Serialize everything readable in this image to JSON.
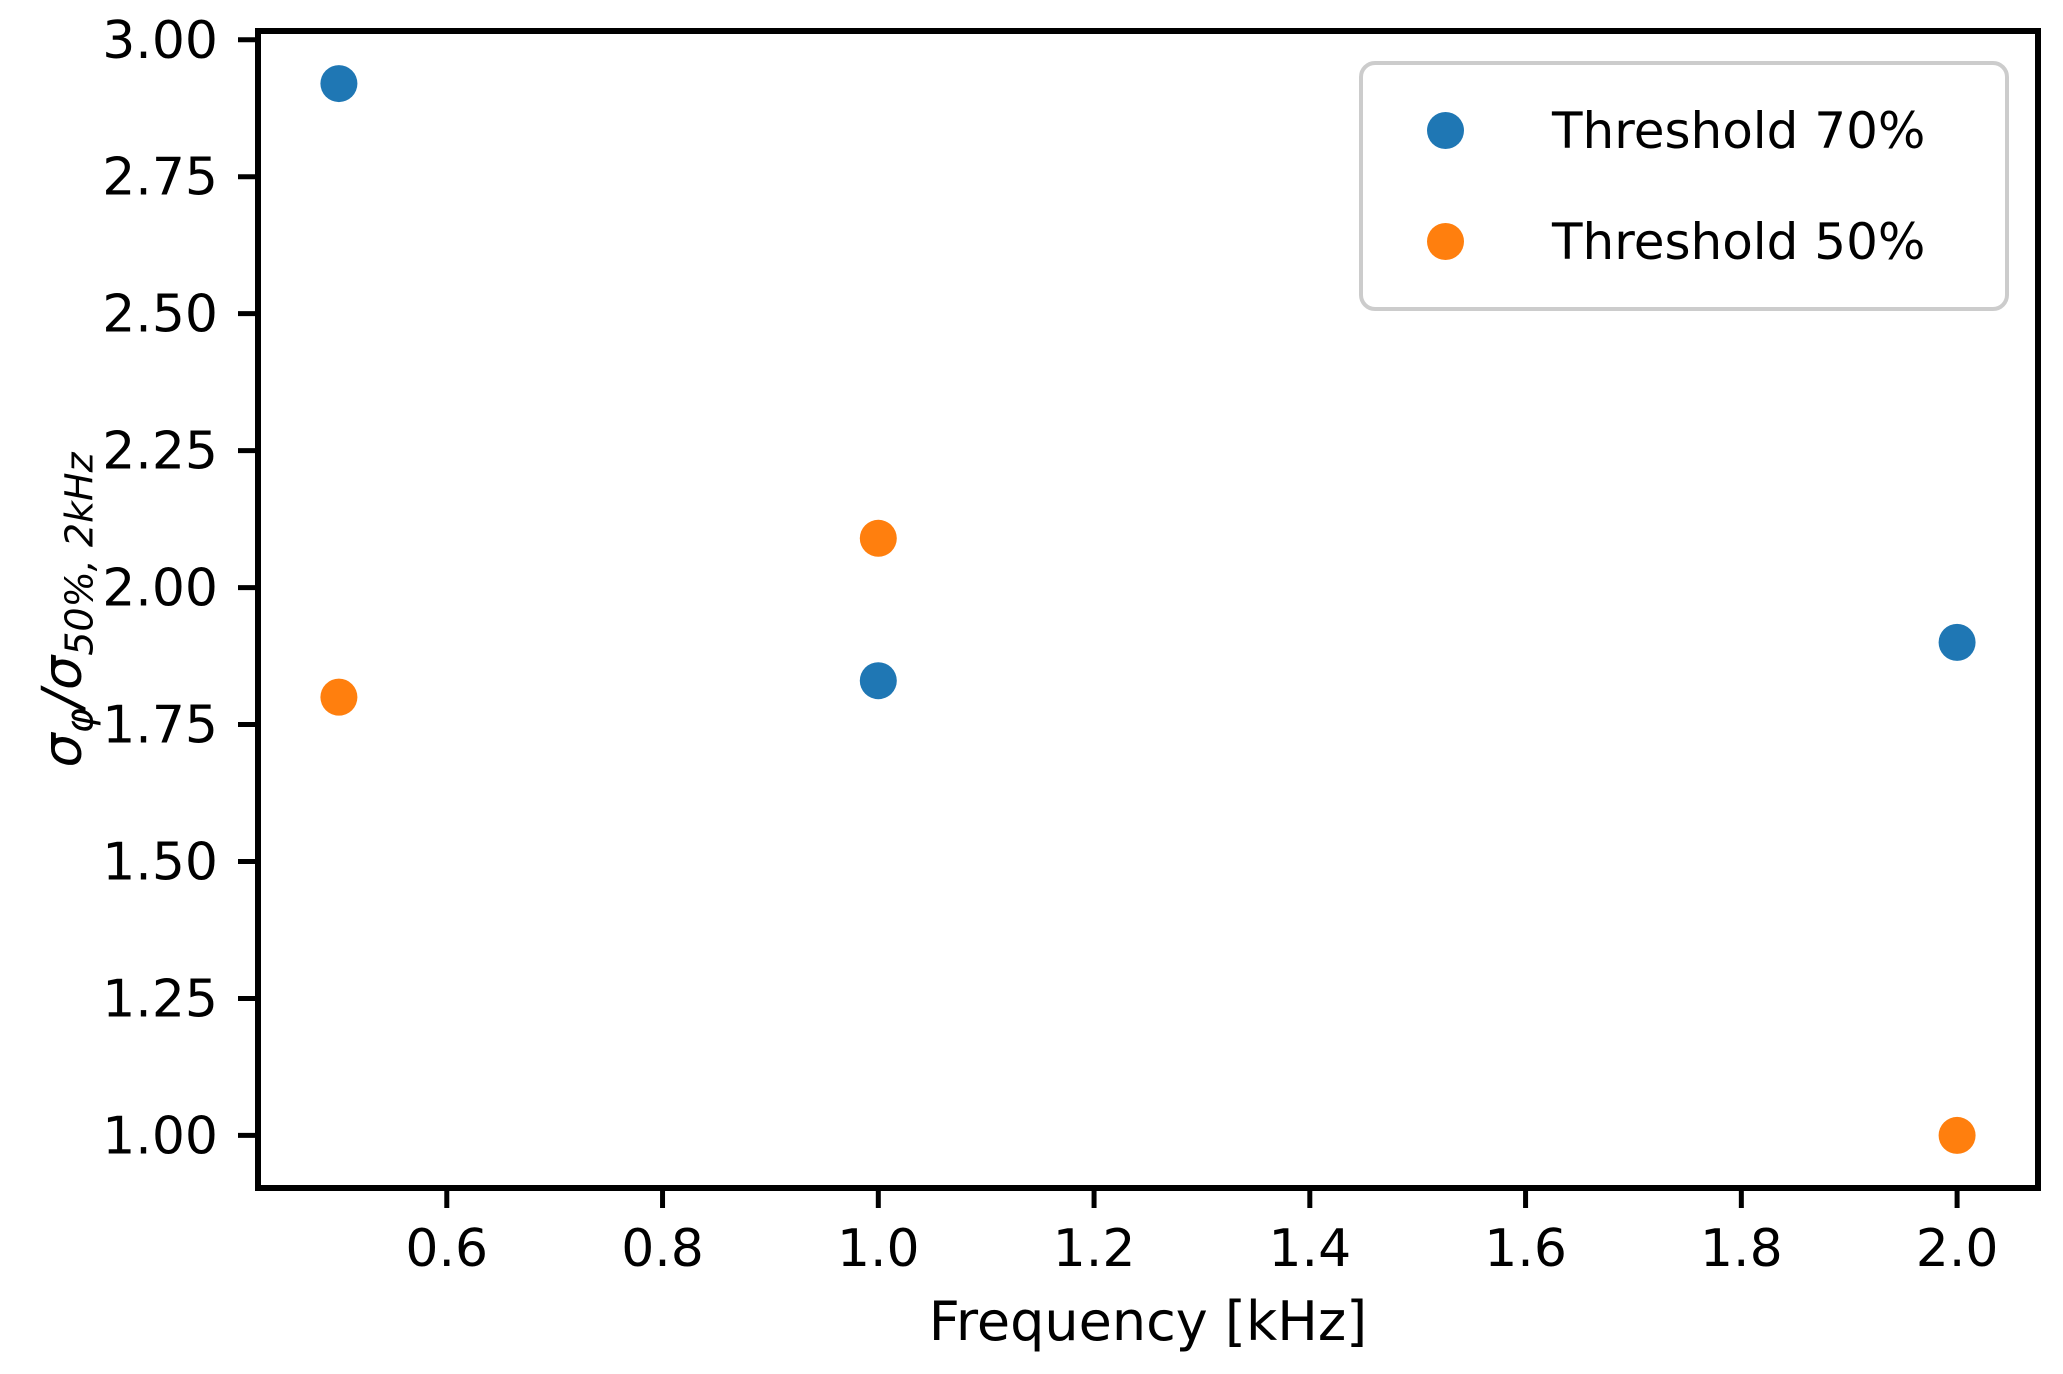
{
  "chart_data": {
    "type": "scatter",
    "title": "",
    "xlabel": "Frequency [kHz]",
    "ylabel": "σ_φ/σ_50%, 2kHz",
    "ylabel_parts": {
      "base1": "σ",
      "sub1": "φ",
      "divider": "/",
      "base2": "σ",
      "sub2": "50%, 2kHz"
    },
    "x_axis": {
      "min": 0.425,
      "max": 2.075,
      "ticks": [
        0.6,
        0.8,
        1.0,
        1.2,
        1.4,
        1.6,
        1.8,
        2.0
      ],
      "tick_labels": [
        "0.6",
        "0.8",
        "1.0",
        "1.2",
        "1.4",
        "1.6",
        "1.8",
        "2.0"
      ]
    },
    "y_axis": {
      "min": 0.904,
      "max": 3.016,
      "ticks": [
        1.0,
        1.25,
        1.5,
        1.75,
        2.0,
        2.25,
        2.5,
        2.75,
        3.0
      ],
      "tick_labels": [
        "1.00",
        "1.25",
        "1.50",
        "1.75",
        "2.00",
        "2.25",
        "2.50",
        "2.75",
        "3.00"
      ]
    },
    "series": [
      {
        "name": "Threshold 70%",
        "color": "#1f77b4",
        "x": [
          0.5,
          1.0,
          2.0
        ],
        "y": [
          2.92,
          1.83,
          1.9
        ]
      },
      {
        "name": "Threshold 50%",
        "color": "#ff7f0e",
        "x": [
          0.5,
          1.0,
          2.0
        ],
        "y": [
          1.8,
          2.09,
          1.0
        ]
      }
    ],
    "legend": {
      "position": "upper right",
      "entries": [
        "Threshold 70%",
        "Threshold 50%"
      ]
    },
    "grid": false,
    "axis_color": "#000000",
    "background_color": "#ffffff"
  }
}
